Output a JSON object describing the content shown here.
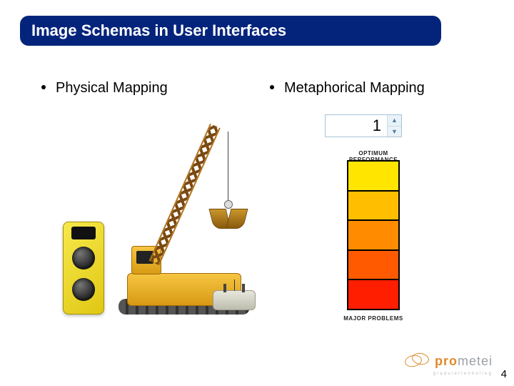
{
  "title": "Image Schemas in User Interfaces",
  "bullets": {
    "left": "Physical Mapping",
    "right": "Metaphorical Mapping"
  },
  "spinner": {
    "value": "1"
  },
  "gauge": {
    "top_label": "OPTIMUM PERFORMANCE",
    "bottom_label": "MAJOR PROBLEMS",
    "cell_colors": [
      "#ffe500",
      "#ffbf00",
      "#ff8c00",
      "#ff5a00",
      "#ff1e00"
    ],
    "border_color": "#000000"
  },
  "title_bar": {
    "bg": "#04247c",
    "text_color": "#ffffff"
  },
  "logo": {
    "brand_bold": "pro",
    "brand_rest": "metei",
    "subline": "graduiertenkolleg"
  },
  "page_number": "4"
}
